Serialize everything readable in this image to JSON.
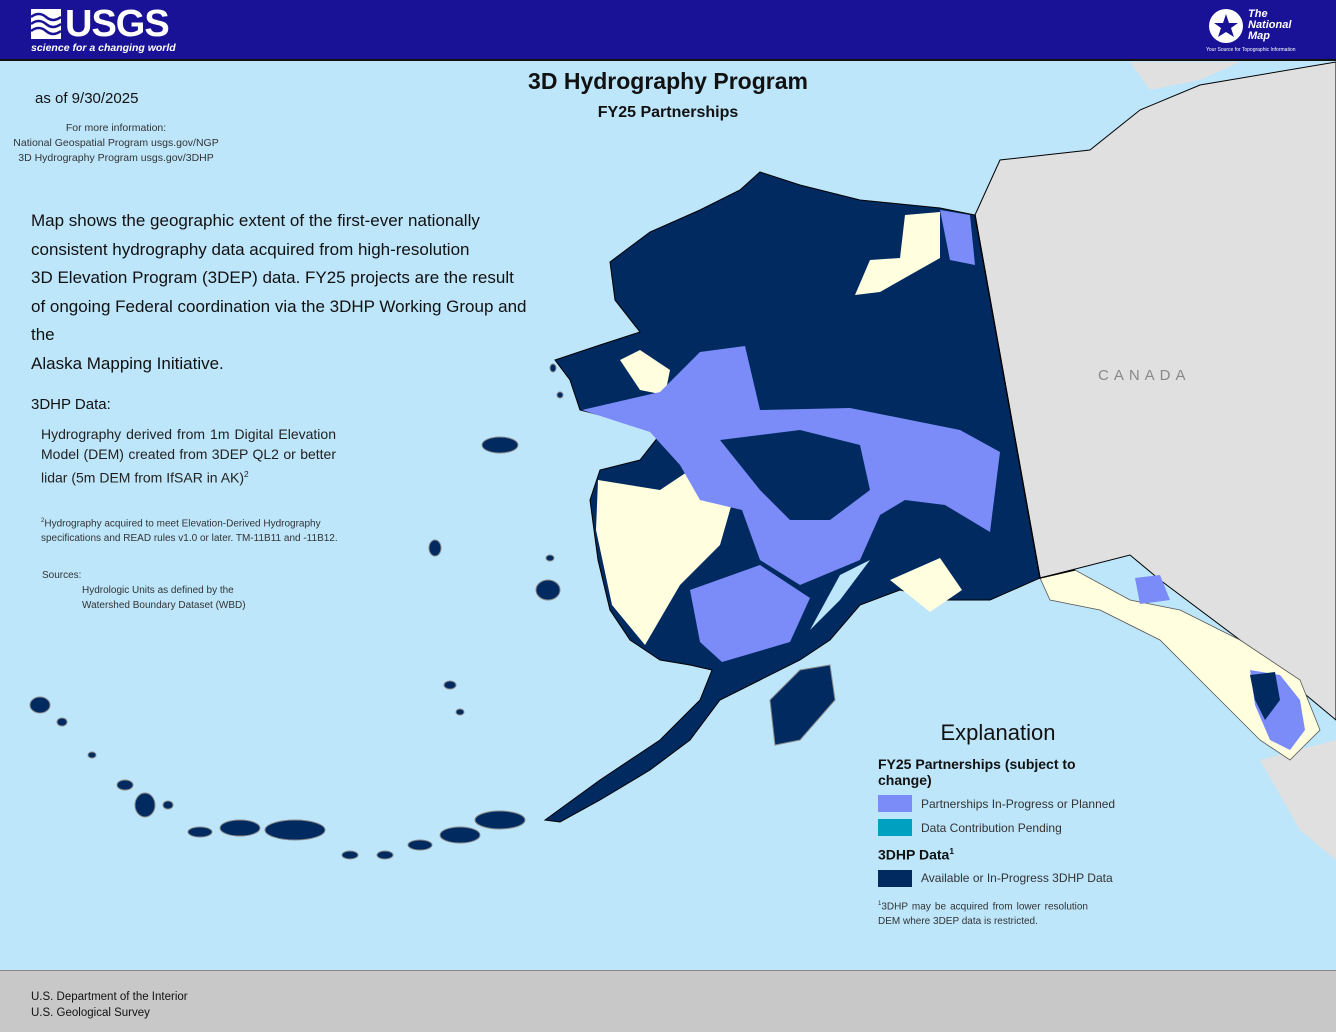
{
  "header": {
    "logo_text": "USGS",
    "logo_tagline": "science for a changing world",
    "partner_logo_title": "The National Map",
    "partner_logo_tagline": "Your Source for Topographic Information",
    "colors": {
      "header_bg": "#1a1296"
    }
  },
  "title": "3D Hydrography Program",
  "subtitle": "FY25 Partnerships",
  "as_of": "as of 9/30/2025",
  "more_info": {
    "label": "For more information:",
    "lines": [
      "National Geospatial Program usgs.gov/NGP",
      "3D Hydrography Program usgs.gov/3DHP"
    ]
  },
  "description": [
    "Map shows the geographic extent of the first-ever nationally",
    "consistent hydrography data acquired from high-resolution",
    "3D Elevation Program (3DEP) data. FY25 projects are the result",
    "of ongoing Federal coordination via the 3DHP Working Group and the",
    "Alaska Mapping Initiative."
  ],
  "data_section": {
    "heading": "3DHP Data:",
    "definition": "Hydrography derived from 1m Digital Elevation Model (DEM) created from 3DEP QL2 or better lidar (5m DEM from IfSAR in AK)",
    "definition_sup": "2",
    "footnote_mark": "2",
    "footnote": "Hydrography acquired to meet Elevation-Derived Hydrography specifications and READ rules v1.0 or later. TM-11B11 and -11B12."
  },
  "sources": {
    "label": "Sources:",
    "lines": [
      "Hydrologic Units as defined by the",
      "Watershed Boundary Dataset (WBD)"
    ]
  },
  "map": {
    "labels": {
      "canada": "CANADA"
    },
    "colors": {
      "ocean": "#bde6fb",
      "canada": "#e0e0e0",
      "available": "#002a60",
      "partnership": "#7b8cf8",
      "pending": "#00a0c0",
      "no_data": "#ffffe0"
    }
  },
  "legend": {
    "title": "Explanation",
    "group1": "FY25 Partnerships (subject to change)",
    "items1": [
      {
        "label": "Partnerships In-Progress or Planned",
        "color": "#7b8cf8"
      },
      {
        "label": "Data Contribution Pending",
        "color": "#00a0c0"
      }
    ],
    "group2": "3DHP Data",
    "group2_sup": "1",
    "items2": [
      {
        "label": "Available or In-Progress 3DHP Data",
        "color": "#002a60"
      }
    ],
    "footnote_mark": "1",
    "footnote": "3DHP may be acquired from lower resolution DEM where 3DEP data is restricted."
  },
  "footer": {
    "lines": [
      "U.S. Department of the Interior",
      "U.S. Geological Survey"
    ]
  }
}
